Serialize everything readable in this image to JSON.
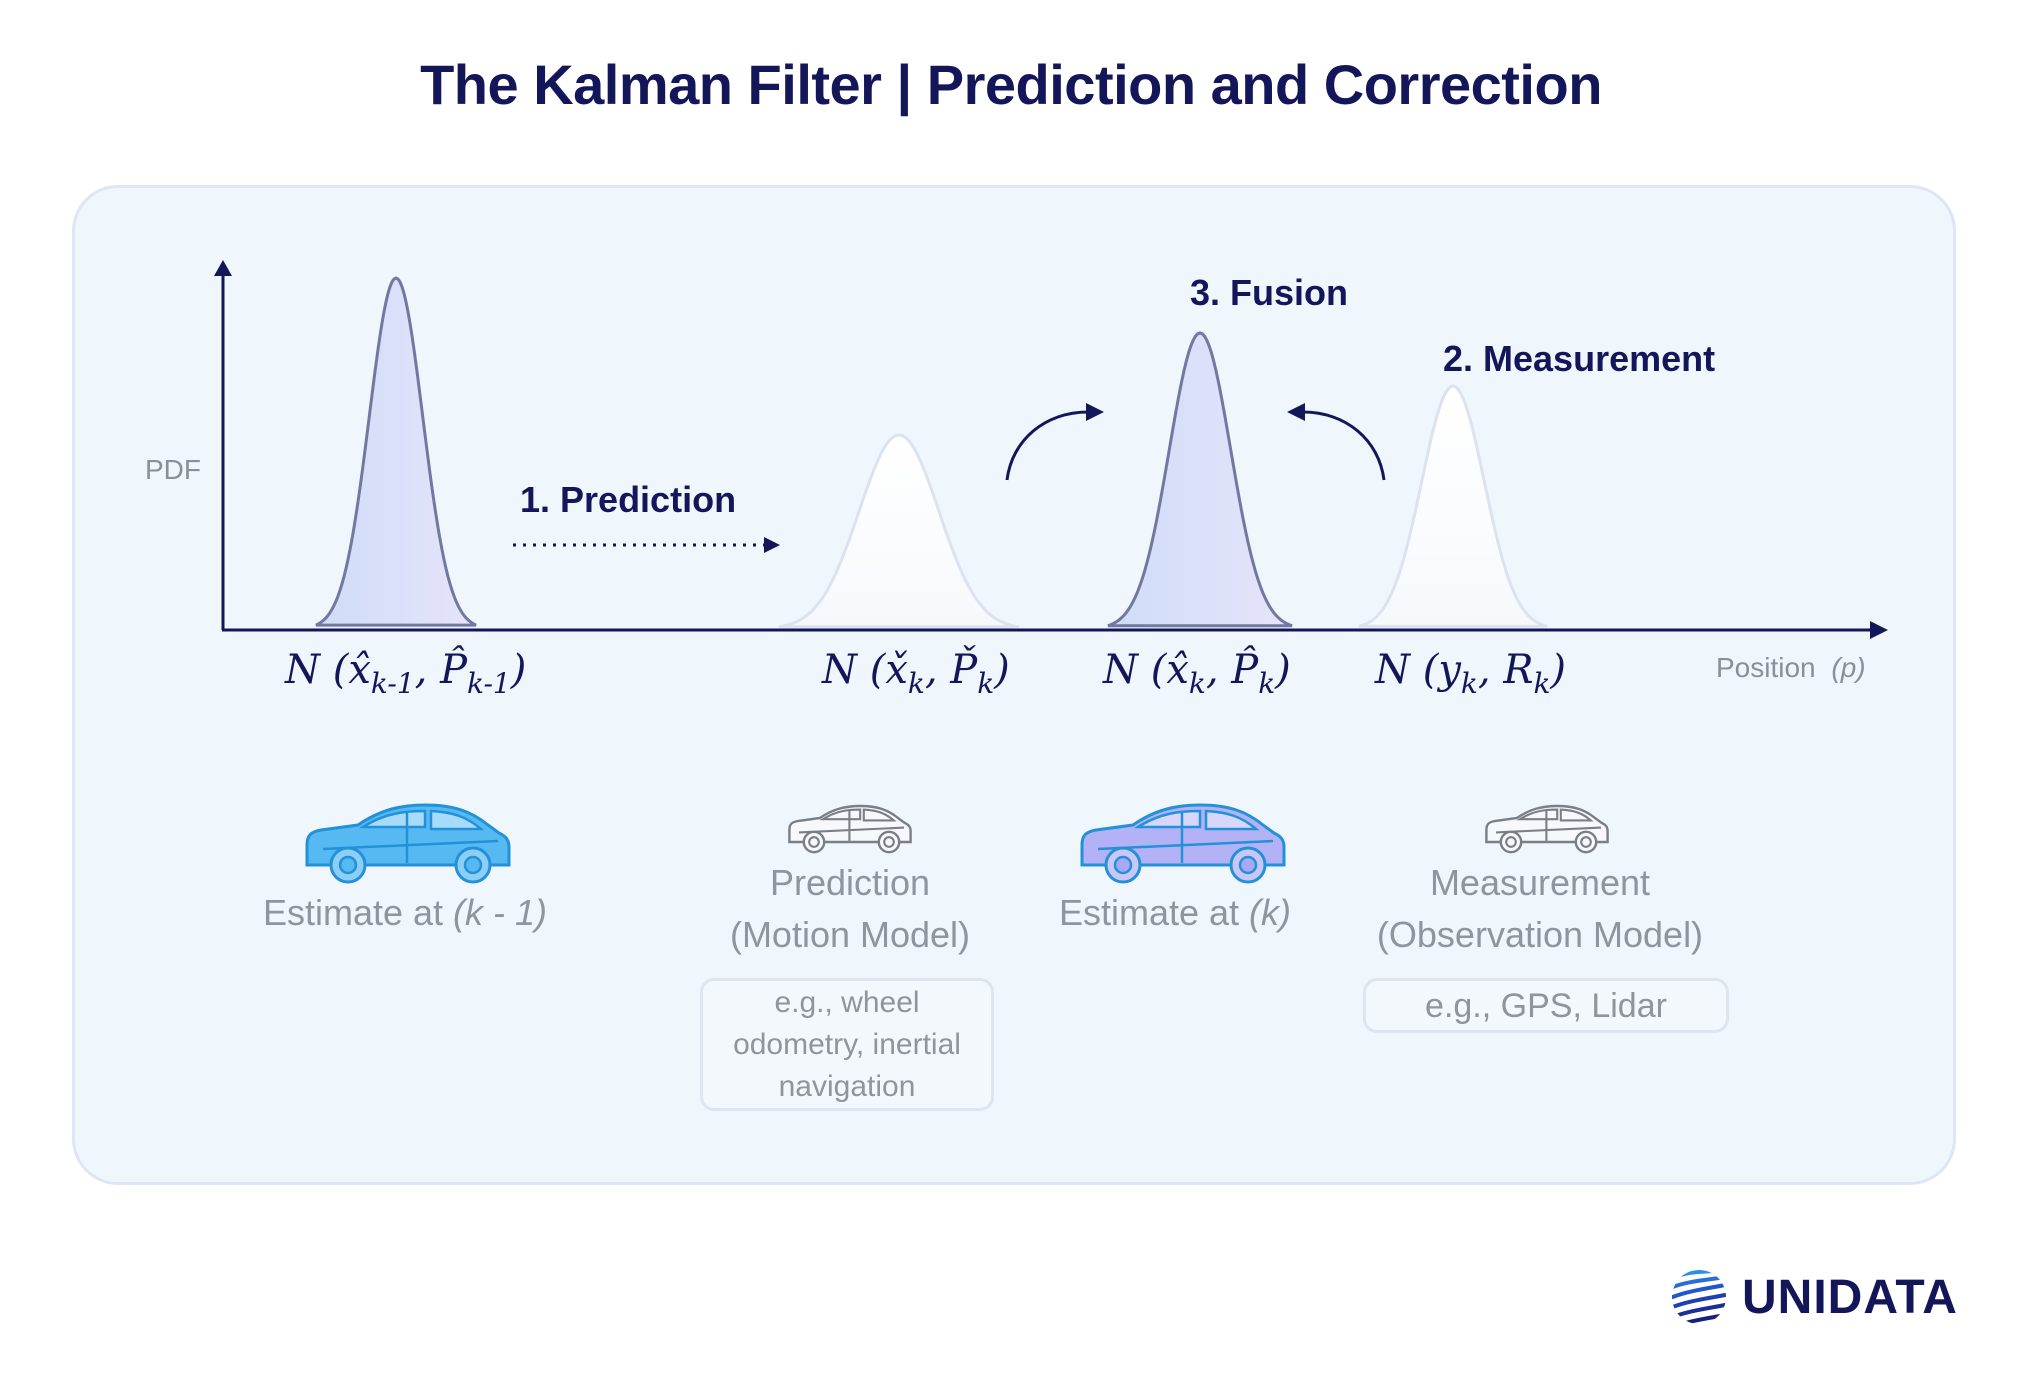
{
  "title": "The Kalman Filter | Prediction and Correction",
  "axes": {
    "y_label": "PDF",
    "x_label": "Position",
    "x_unit": "(p)"
  },
  "steps": {
    "prediction": "1. Prediction",
    "measurement": "2. Measurement",
    "fusion": "3. Fusion"
  },
  "distributions": [
    {
      "base": "N (x̂",
      "sub1": "k-1",
      "mid": ", P̂",
      "sub2": "k-1",
      "end": ")"
    },
    {
      "base": "N (x̌",
      "sub1": "k",
      "mid": ", P̌",
      "sub2": "k",
      "end": ")"
    },
    {
      "base": "N (x̂",
      "sub1": "k",
      "mid": ", P̂",
      "sub2": "k",
      "end": ")"
    },
    {
      "base": "N (y",
      "sub1": "k",
      "mid": ", R",
      "sub2": "k",
      "end": ")"
    }
  ],
  "captions": {
    "estimate_prev": {
      "text": "Estimate at ",
      "math": "(k - 1)"
    },
    "prediction": {
      "line1": "Prediction",
      "line2": "(Motion Model)"
    },
    "estimate_k": {
      "text": "Estimate at ",
      "math": "(k)"
    },
    "measurement": {
      "line1": "Measurement",
      "line2": "(Observation Model)"
    }
  },
  "notes": {
    "prediction": "e.g., wheel odometry, inertial navigation",
    "measurement": "e.g., GPS, Lidar"
  },
  "brand": "UNIDATA",
  "colors": {
    "navy": "#14165a",
    "curve_stroke": "#7378a0",
    "car_blue": "#57b9f2",
    "car_purple": "#a9a8f4",
    "gray_text": "#8f949d"
  }
}
